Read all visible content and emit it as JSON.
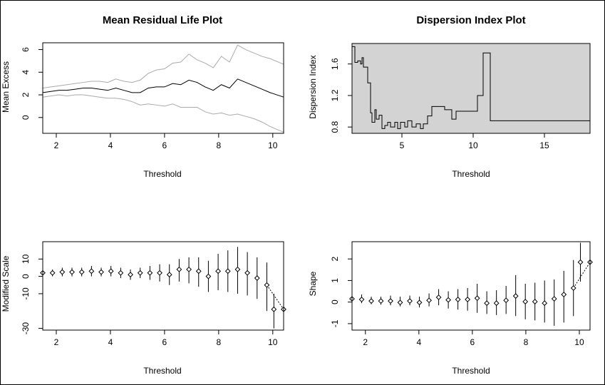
{
  "chart_data": [
    {
      "type": "line",
      "title": "Mean Residual Life Plot",
      "xlabel": "Threshold",
      "ylabel": "Mean Excess",
      "xlim": [
        1.5,
        10.4
      ],
      "ylim": [
        -1.4,
        6.6
      ],
      "xticks": [
        2,
        4,
        6,
        8,
        10
      ],
      "yticks": [
        0,
        2,
        4,
        6
      ],
      "colors": {
        "mean": "#000000",
        "ci": "#aaaaaa"
      },
      "series": [
        {
          "role": "mean",
          "x": [
            1.5,
            1.8,
            2.1,
            2.4,
            2.7,
            3.0,
            3.3,
            3.6,
            3.9,
            4.2,
            4.5,
            4.8,
            5.1,
            5.4,
            5.7,
            6.0,
            6.3,
            6.6,
            6.9,
            7.2,
            7.5,
            7.8,
            8.1,
            8.4,
            8.7,
            9.0,
            9.3,
            9.6,
            9.9,
            10.4
          ],
          "values": [
            2.2,
            2.3,
            2.4,
            2.4,
            2.5,
            2.6,
            2.6,
            2.5,
            2.4,
            2.6,
            2.4,
            2.2,
            2.2,
            2.6,
            2.7,
            2.7,
            3.0,
            2.9,
            3.3,
            3.1,
            2.7,
            2.4,
            2.9,
            2.6,
            3.4,
            3.1,
            2.8,
            2.5,
            2.2,
            1.8
          ]
        },
        {
          "role": "upper",
          "x": [
            1.5,
            1.8,
            2.1,
            2.4,
            2.7,
            3.0,
            3.3,
            3.6,
            3.9,
            4.2,
            4.5,
            4.8,
            5.1,
            5.4,
            5.7,
            6.0,
            6.3,
            6.6,
            6.9,
            7.2,
            7.5,
            7.8,
            8.1,
            8.4,
            8.7,
            9.0,
            9.3,
            9.6,
            9.9,
            10.4
          ],
          "values": [
            2.6,
            2.7,
            2.8,
            2.9,
            3.0,
            3.1,
            3.2,
            3.2,
            3.1,
            3.4,
            3.2,
            3.1,
            3.3,
            3.9,
            4.2,
            4.3,
            4.8,
            4.9,
            5.6,
            5.1,
            4.8,
            4.4,
            5.4,
            4.9,
            6.4,
            6.0,
            5.7,
            5.4,
            5.2,
            4.7
          ]
        },
        {
          "role": "lower",
          "x": [
            1.5,
            1.8,
            2.1,
            2.4,
            2.7,
            3.0,
            3.3,
            3.6,
            3.9,
            4.2,
            4.5,
            4.8,
            5.1,
            5.4,
            5.7,
            6.0,
            6.3,
            6.6,
            6.9,
            7.2,
            7.5,
            7.8,
            8.1,
            8.4,
            8.7,
            9.0,
            9.3,
            9.6,
            9.9,
            10.4
          ],
          "values": [
            1.8,
            1.9,
            2.0,
            1.9,
            2.0,
            2.0,
            1.9,
            1.8,
            1.7,
            1.7,
            1.6,
            1.4,
            1.1,
            1.2,
            1.1,
            1.0,
            1.2,
            0.9,
            0.9,
            0.9,
            0.5,
            0.3,
            0.4,
            0.2,
            0.3,
            0.1,
            -0.1,
            -0.4,
            -0.8,
            -1.3
          ]
        }
      ]
    },
    {
      "type": "line",
      "title": "Dispersion Index Plot",
      "xlabel": "Threshold",
      "ylabel": "Dispersion Index",
      "xlim": [
        1.5,
        18.2
      ],
      "ylim": [
        0.72,
        1.86
      ],
      "xticks": [
        5,
        10,
        15
      ],
      "yticks": [
        0.8,
        1.2,
        1.6
      ],
      "colors": {
        "line": "#000000",
        "background": "#d3d3d3"
      },
      "x": [
        1.5,
        1.65,
        1.7,
        1.9,
        2.1,
        2.2,
        2.3,
        2.4,
        2.6,
        2.8,
        2.9,
        3.1,
        3.2,
        3.4,
        3.6,
        3.8,
        4.0,
        4.2,
        4.5,
        4.7,
        4.9,
        5.2,
        5.4,
        5.7,
        6.0,
        6.3,
        6.5,
        6.8,
        7.1,
        7.4,
        7.7,
        8.0,
        8.3,
        8.5,
        8.8,
        9.2,
        9.6,
        10.0,
        10.3,
        10.5,
        10.7,
        11.0,
        11.2,
        12.0,
        14.0,
        16.0,
        18.2
      ],
      "values": [
        1.82,
        1.82,
        1.62,
        1.64,
        1.6,
        1.68,
        1.56,
        1.56,
        1.36,
        0.98,
        0.86,
        1.02,
        0.9,
        0.95,
        0.78,
        0.82,
        0.86,
        0.8,
        0.86,
        0.78,
        0.86,
        0.8,
        0.88,
        0.8,
        0.84,
        0.78,
        0.84,
        0.94,
        1.06,
        1.06,
        1.06,
        1.02,
        1.02,
        0.9,
        1.0,
        1.0,
        1.0,
        1.0,
        1.2,
        1.2,
        1.74,
        1.74,
        0.88,
        0.88,
        0.88,
        0.88,
        0.88
      ]
    },
    {
      "type": "scatter",
      "xlabel": "Threshold",
      "ylabel": "Modified Scale",
      "xlim": [
        1.5,
        10.4
      ],
      "ylim": [
        -31,
        20
      ],
      "xticks": [
        2,
        4,
        6,
        8,
        10
      ],
      "yticks": [
        -30,
        -10,
        0,
        10
      ],
      "x": [
        1.5,
        1.86,
        2.22,
        2.58,
        2.94,
        3.3,
        3.66,
        4.02,
        4.38,
        4.74,
        5.1,
        5.46,
        5.82,
        6.18,
        6.54,
        6.9,
        7.26,
        7.62,
        7.98,
        8.34,
        8.7,
        9.06,
        9.42,
        9.78,
        10.04,
        10.4
      ],
      "values": [
        2,
        2,
        2.5,
        2.5,
        2.5,
        3,
        2.5,
        3,
        2,
        1,
        2,
        2,
        2,
        1,
        4,
        4,
        3,
        0,
        3,
        3,
        4,
        2,
        -1,
        -5,
        -19,
        -19
      ],
      "lower": [
        0,
        0,
        0,
        0,
        0,
        0,
        0,
        0,
        -1,
        -2,
        -1,
        -2,
        -3,
        -5,
        -3,
        -4,
        -6,
        -9,
        -8,
        -9,
        -10,
        -11,
        -13,
        -20,
        -30,
        -30
      ],
      "upper": [
        4,
        4,
        5,
        5,
        5,
        6,
        5,
        6,
        5,
        4,
        5,
        6,
        7,
        7,
        10,
        11,
        11,
        9,
        13,
        15,
        17,
        14,
        11,
        8,
        -10,
        -10
      ]
    },
    {
      "type": "scatter",
      "xlabel": "Threshold",
      "ylabel": "Shape",
      "xlim": [
        1.5,
        10.4
      ],
      "ylim": [
        -1.3,
        2.8
      ],
      "xticks": [
        2,
        4,
        6,
        8,
        10
      ],
      "yticks": [
        -1,
        0,
        1,
        2
      ],
      "x": [
        1.5,
        1.86,
        2.22,
        2.58,
        2.94,
        3.3,
        3.66,
        4.02,
        4.38,
        4.74,
        5.1,
        5.46,
        5.82,
        6.18,
        6.54,
        6.9,
        7.26,
        7.62,
        7.98,
        8.34,
        8.7,
        9.06,
        9.42,
        9.78,
        10.04,
        10.4
      ],
      "values": [
        0.15,
        0.12,
        0.05,
        0.05,
        0.05,
        -0.02,
        0.05,
        -0.02,
        0.08,
        0.22,
        0.1,
        0.12,
        0.12,
        0.18,
        -0.05,
        -0.05,
        0.08,
        0.28,
        0.02,
        0.02,
        -0.05,
        0.15,
        0.35,
        0.65,
        1.85,
        1.85
      ],
      "lower": [
        -0.05,
        -0.05,
        -0.1,
        -0.12,
        -0.15,
        -0.2,
        -0.15,
        -0.25,
        -0.2,
        -0.15,
        -0.3,
        -0.35,
        -0.4,
        -0.5,
        -0.55,
        -0.6,
        -0.55,
        -0.65,
        -0.8,
        -0.85,
        -0.95,
        -1.1,
        -0.95,
        -0.65,
        0.95,
        0.95
      ],
      "upper": [
        0.35,
        0.35,
        0.25,
        0.25,
        0.3,
        0.25,
        0.3,
        0.25,
        0.4,
        0.6,
        0.5,
        0.6,
        0.65,
        0.85,
        0.5,
        0.55,
        0.75,
        1.25,
        0.85,
        0.9,
        1.0,
        1.05,
        1.45,
        1.95,
        2.75,
        2.75
      ]
    }
  ]
}
